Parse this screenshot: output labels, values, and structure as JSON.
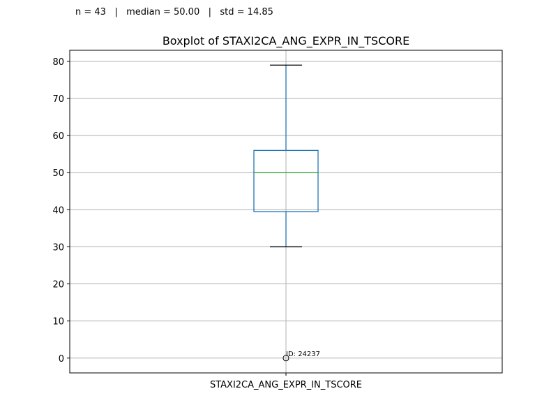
{
  "stats_text": "n = 43   |   median = 50.00   |   std = 14.85",
  "chart_data": {
    "type": "box",
    "title": "Boxplot of STAXI2CA_ANG_EXPR_IN_TSCORE",
    "xlabel": "",
    "ylabel": "",
    "categories": [
      "STAXI2CA_ANG_EXPR_IN_TSCORE"
    ],
    "ylim": [
      -4,
      83
    ],
    "yticks": [
      0,
      10,
      20,
      30,
      40,
      50,
      60,
      70,
      80
    ],
    "grid": true,
    "box": {
      "whisker_low": 30,
      "q1": 39.5,
      "median": 50,
      "q3": 56,
      "whisker_high": 79
    },
    "outliers": [
      {
        "value": 0,
        "label": "ID: 24237"
      }
    ],
    "colors": {
      "box": "#1f77b4",
      "median": "#2ca02c",
      "caps": "#000000",
      "grid": "#b0b0b0"
    }
  }
}
